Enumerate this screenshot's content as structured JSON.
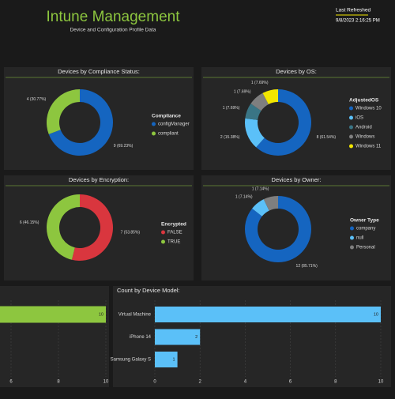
{
  "header": {
    "title": "Intune Management",
    "subtitle": "Device and Configuration Profile Data",
    "refresh_label": "Last Refreshed",
    "refresh_time": "9/8/2023 2:16:25 PM"
  },
  "chart_data": [
    {
      "type": "donut",
      "title": "Devices by Compliance Status:",
      "legend_title": "Compliance",
      "categories": [
        "configManager",
        "compliant"
      ],
      "values": [
        9,
        4
      ],
      "value_labels": [
        "9 (69.23%)",
        "4 (30.77%)"
      ],
      "colors": [
        "#1565c0",
        "#8dc63f"
      ]
    },
    {
      "type": "donut",
      "title": "Devices by OS:",
      "legend_title": "AdjustedOS",
      "categories": [
        "Windows 10",
        "iOS",
        "Android",
        "Windows",
        "Windows 11"
      ],
      "values": [
        8,
        2,
        1,
        1,
        1
      ],
      "value_labels": [
        "8 (61.54%)",
        "2 (15.38%)",
        "1 (7.69%)",
        "1 (7.69%)",
        "1 (7.69%)"
      ],
      "colors": [
        "#1565c0",
        "#5bc0f8",
        "#3a7585",
        "#7f7f7f",
        "#f2e600"
      ]
    },
    {
      "type": "donut",
      "title": "Devices by Encryption:",
      "legend_title": "Encrypted",
      "categories": [
        "FALSE",
        "TRUE"
      ],
      "values": [
        7,
        6
      ],
      "value_labels": [
        "7 (53.85%)",
        "6 (46.15%)"
      ],
      "colors": [
        "#d9363e",
        "#8dc63f"
      ]
    },
    {
      "type": "donut",
      "title": "Devices by Owner:",
      "legend_title": "Owner Type",
      "categories": [
        "company",
        "null",
        "Personal"
      ],
      "values": [
        12,
        1,
        1
      ],
      "value_labels": [
        "12 (85.71%)",
        "1 (7.14%)",
        "1 (7.14%)"
      ],
      "colors": [
        "#1565c0",
        "#5bc0f8",
        "#7f7f7f"
      ]
    },
    {
      "type": "hbar",
      "categories": [
        null
      ],
      "values": [
        10
      ],
      "color": "#8dc63f",
      "xlim": [
        0,
        10
      ],
      "xticks": [
        6,
        8,
        10
      ],
      "grid": true
    },
    {
      "type": "hbar",
      "title": "Count by Device Model:",
      "categories": [
        "Virtual Machine",
        "iPhone 14",
        "Samsung Galaxy S"
      ],
      "values": [
        10,
        2,
        1
      ],
      "color": "#5bc0f8",
      "xlim": [
        0,
        10
      ],
      "xticks": [
        0,
        2,
        4,
        6,
        8,
        10
      ],
      "grid": true
    }
  ]
}
